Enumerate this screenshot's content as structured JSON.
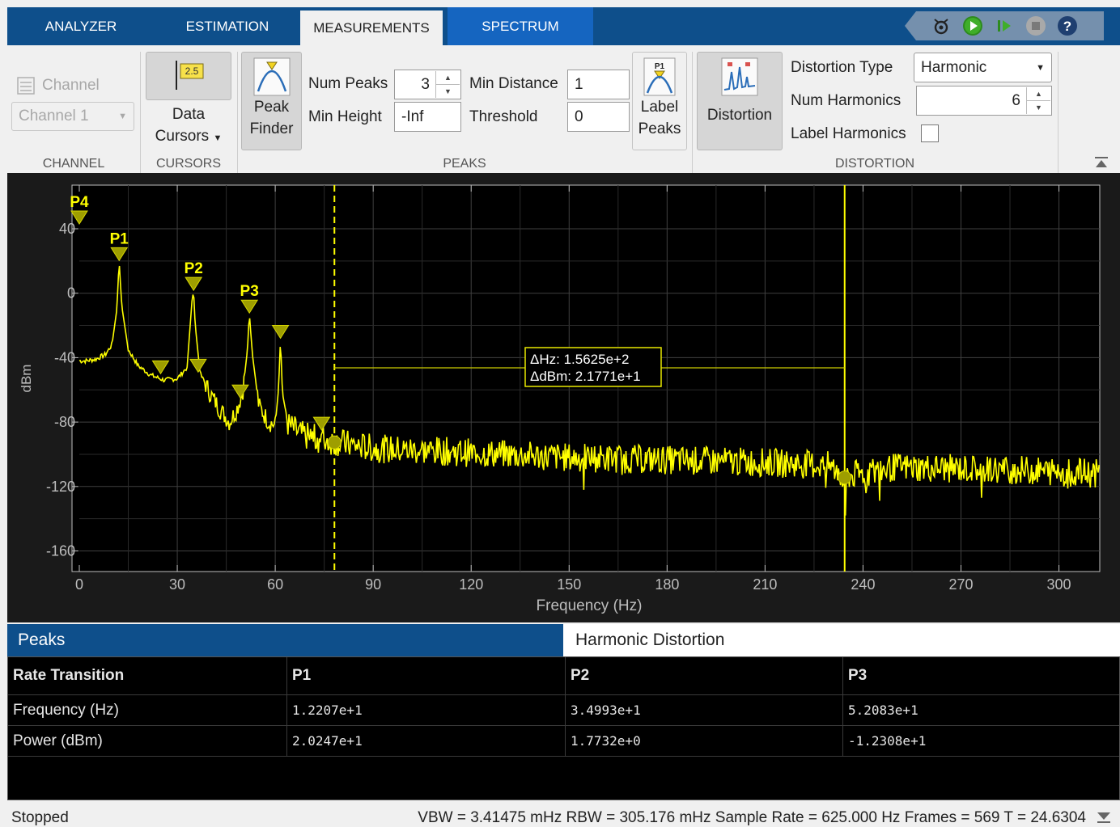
{
  "tabs": [
    {
      "label": "ANALYZER"
    },
    {
      "label": "ESTIMATION"
    },
    {
      "label": "MEASUREMENTS"
    },
    {
      "label": "SPECTRUM"
    }
  ],
  "quick_access": [
    "camera-settings-icon",
    "run-icon",
    "step-forward-icon",
    "stop-icon",
    "help-icon"
  ],
  "toolstrip": {
    "channel": {
      "section": "CHANNEL",
      "channel_label": "Channel",
      "channel_value": "Channel 1"
    },
    "cursors": {
      "section": "CURSORS",
      "button_label_1": "Data",
      "button_label_2": "Cursors",
      "icon_text": "2.5"
    },
    "peaks": {
      "section": "PEAKS",
      "peak_finder_1": "Peak",
      "peak_finder_2": "Finder",
      "num_peaks_label": "Num Peaks",
      "num_peaks_value": "3",
      "min_height_label": "Min Height",
      "min_height_value": "-Inf",
      "min_distance_label": "Min Distance",
      "min_distance_value": "1",
      "threshold_label": "Threshold",
      "threshold_value": "0",
      "label_peaks_1": "Label",
      "label_peaks_2": "Peaks",
      "label_peaks_icon_text": "P1"
    },
    "distortion": {
      "section": "DISTORTION",
      "button_label": "Distortion",
      "type_label": "Distortion Type",
      "type_value": "Harmonic",
      "num_harmonics_label": "Num Harmonics",
      "num_harmonics_value": "6",
      "label_harmonics_label": "Label Harmonics",
      "label_harmonics_checked": false
    }
  },
  "plot": {
    "ylabel": "dBm",
    "xlabel": "Frequency (Hz)",
    "xticks": [
      "0",
      "30",
      "60",
      "90",
      "120",
      "150",
      "180",
      "210",
      "240",
      "270",
      "300"
    ],
    "yticks": [
      "40",
      "0",
      "-40",
      "-80",
      "-120",
      "-160"
    ],
    "peak_labels": [
      "P4",
      "P1",
      "P2",
      "P3"
    ],
    "cursor_readout": {
      "line1": "ΔHz: 1.5625e+2",
      "line2": "ΔdBm: 2.1771e+1"
    },
    "colors": {
      "trace": "#ffff00",
      "background": "#000000",
      "grid": "#404040"
    }
  },
  "chart_data": {
    "type": "line",
    "title": "",
    "xlabel": "Frequency (Hz)",
    "ylabel": "dBm",
    "xlim": [
      0,
      312.5
    ],
    "ylim": [
      -180,
      48
    ],
    "grid": true,
    "series": [
      {
        "x": [
          0,
          2,
          5,
          8,
          10,
          11.5,
          12.207,
          13,
          15,
          18,
          22,
          26,
          30,
          33,
          34.5,
          34.993,
          35.5,
          37,
          40,
          43,
          46,
          48,
          50,
          51.5,
          52.083,
          53,
          55,
          58,
          60,
          61,
          61.6,
          62.2,
          64,
          68,
          72,
          78,
          85,
          95,
          110,
          130,
          150,
          170,
          190,
          210,
          230,
          234,
          250,
          270,
          290,
          312.5
        ],
        "y": [
          -42,
          -42,
          -41,
          -38,
          -32,
          -10,
          20.247,
          -8,
          -35,
          -45,
          -51,
          -54,
          -53,
          -46,
          -5,
          1.7732,
          -20,
          -50,
          -62,
          -72,
          -80,
          -73,
          -62,
          -35,
          -12.308,
          -38,
          -70,
          -80,
          -82,
          -60,
          -28,
          -62,
          -82,
          -88,
          -90,
          -92,
          -95,
          -97,
          -98,
          -100,
          -102,
          -103,
          -104,
          -105,
          -107,
          -114,
          -108,
          -109,
          -110,
          -112
        ]
      }
    ],
    "peaks": [
      {
        "label": "P1",
        "x": 12.207,
        "y": 20.247
      },
      {
        "label": "P2",
        "x": 34.993,
        "y": 1.7732
      },
      {
        "label": "P3",
        "x": 52.083,
        "y": -12.308
      },
      {
        "label": "P4",
        "x": 0,
        "y": 40
      }
    ],
    "harmonic_markers": [
      {
        "x": 24.9,
        "y": -50
      },
      {
        "x": 36.4,
        "y": -49
      },
      {
        "x": 49.3,
        "y": -65
      },
      {
        "x": 61.6,
        "y": -28
      },
      {
        "x": 74.2,
        "y": -85
      }
    ],
    "cursors": [
      {
        "x": 78.125,
        "y": -92.6
      },
      {
        "x": 234.375,
        "y": -114.4
      }
    ]
  },
  "bottom_tabs": {
    "peaks": "Peaks",
    "harmonic": "Harmonic Distortion"
  },
  "table": {
    "headers": [
      "Rate Transition",
      "P1",
      "P2",
      "P3"
    ],
    "rows": [
      [
        "Frequency (Hz)",
        "1.2207e+1",
        "3.4993e+1",
        "5.2083e+1"
      ],
      [
        "Power (dBm)",
        "2.0247e+1",
        "1.7732e+0",
        "-1.2308e+1"
      ]
    ]
  },
  "status": {
    "state": "Stopped",
    "info": "VBW = 3.41475 mHz  RBW = 305.176 mHz  Sample Rate = 625.000 Hz  Frames = 569  T = 24.6304"
  }
}
